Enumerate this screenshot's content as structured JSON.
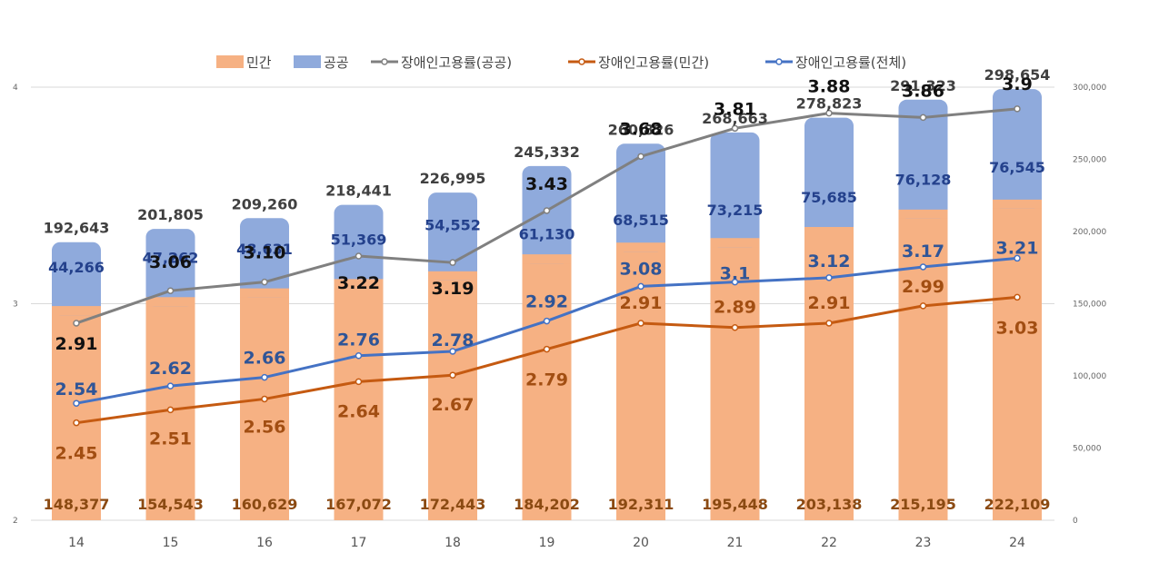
{
  "chart_data": {
    "type": "bar",
    "stacked": true,
    "categories": [
      "14",
      "15",
      "16",
      "17",
      "18",
      "19",
      "20",
      "21",
      "22",
      "23",
      "24"
    ],
    "series": [
      {
        "name": "민간",
        "kind": "bar",
        "axis": "right",
        "color": "#F6B183",
        "values": [
          148377,
          154543,
          160629,
          167072,
          172443,
          184202,
          192311,
          195448,
          203138,
          215195,
          222109
        ],
        "labels": [
          "148,377",
          "154,543",
          "160,629",
          "167,072",
          "172,443",
          "184,202",
          "192,311",
          "195,448",
          "203,138",
          "215,195",
          "222,109"
        ]
      },
      {
        "name": "공공",
        "kind": "bar",
        "axis": "right",
        "color": "#8FAADC",
        "values": [
          44266,
          47262,
          48631,
          51369,
          54552,
          61130,
          68515,
          73215,
          75685,
          76128,
          76545
        ],
        "labels": [
          "44,266",
          "47,262",
          "48,631",
          "51,369",
          "54,552",
          "61,130",
          "68,515",
          "73,215",
          "75,685",
          "76,128",
          "76,545"
        ]
      },
      {
        "name": "장애인고용률(공공)",
        "kind": "line",
        "axis": "left",
        "color": "#808080",
        "values": [
          2.91,
          3.06,
          3.1,
          3.22,
          3.19,
          3.43,
          3.68,
          3.81,
          3.88,
          3.86,
          3.9
        ],
        "labels": [
          "2.91",
          "3.06",
          "3.10",
          "3.22",
          "3.19",
          "3.43",
          "3.68",
          "3.81",
          "3.88",
          "3.86",
          "3.9"
        ]
      },
      {
        "name": "장애인고용률(민간)",
        "kind": "line",
        "axis": "left",
        "color": "#C55A11",
        "values": [
          2.45,
          2.51,
          2.56,
          2.64,
          2.67,
          2.79,
          2.91,
          2.89,
          2.91,
          2.99,
          3.03
        ],
        "labels": [
          "2.45",
          "2.51",
          "2.56",
          "2.64",
          "2.67",
          "2.79",
          "2.91",
          "2.89",
          "2.91",
          "2.99",
          "3.03"
        ]
      },
      {
        "name": "장애인고용률(전체)",
        "kind": "line",
        "axis": "left",
        "color": "#4472C4",
        "values": [
          2.54,
          2.62,
          2.66,
          2.76,
          2.78,
          2.92,
          3.08,
          3.1,
          3.12,
          3.17,
          3.21
        ],
        "labels": [
          "2.54",
          "2.62",
          "2.66",
          "2.76",
          "2.78",
          "2.92",
          "3.08",
          "3.1",
          "3.12",
          "3.17",
          "3.21"
        ]
      }
    ],
    "totals": [
      192643,
      201805,
      209260,
      218441,
      226995,
      245332,
      260826,
      268663,
      278823,
      291323,
      298654
    ],
    "total_labels": [
      "192,643",
      "201,805",
      "209,260",
      "218,441",
      "226,995",
      "245,332",
      "260,826",
      "268,663",
      "278,823",
      "291,323",
      "298,654"
    ],
    "y_left": {
      "min": 2,
      "max": 4,
      "ticks": [
        "2",
        "3",
        "4"
      ]
    },
    "y_right": {
      "min": 0,
      "max": 300000,
      "ticks": [
        "0",
        "50,000",
        "100,000",
        "150,000",
        "200,000",
        "250,000",
        "300,000"
      ]
    },
    "grid": true,
    "legend": "top"
  }
}
